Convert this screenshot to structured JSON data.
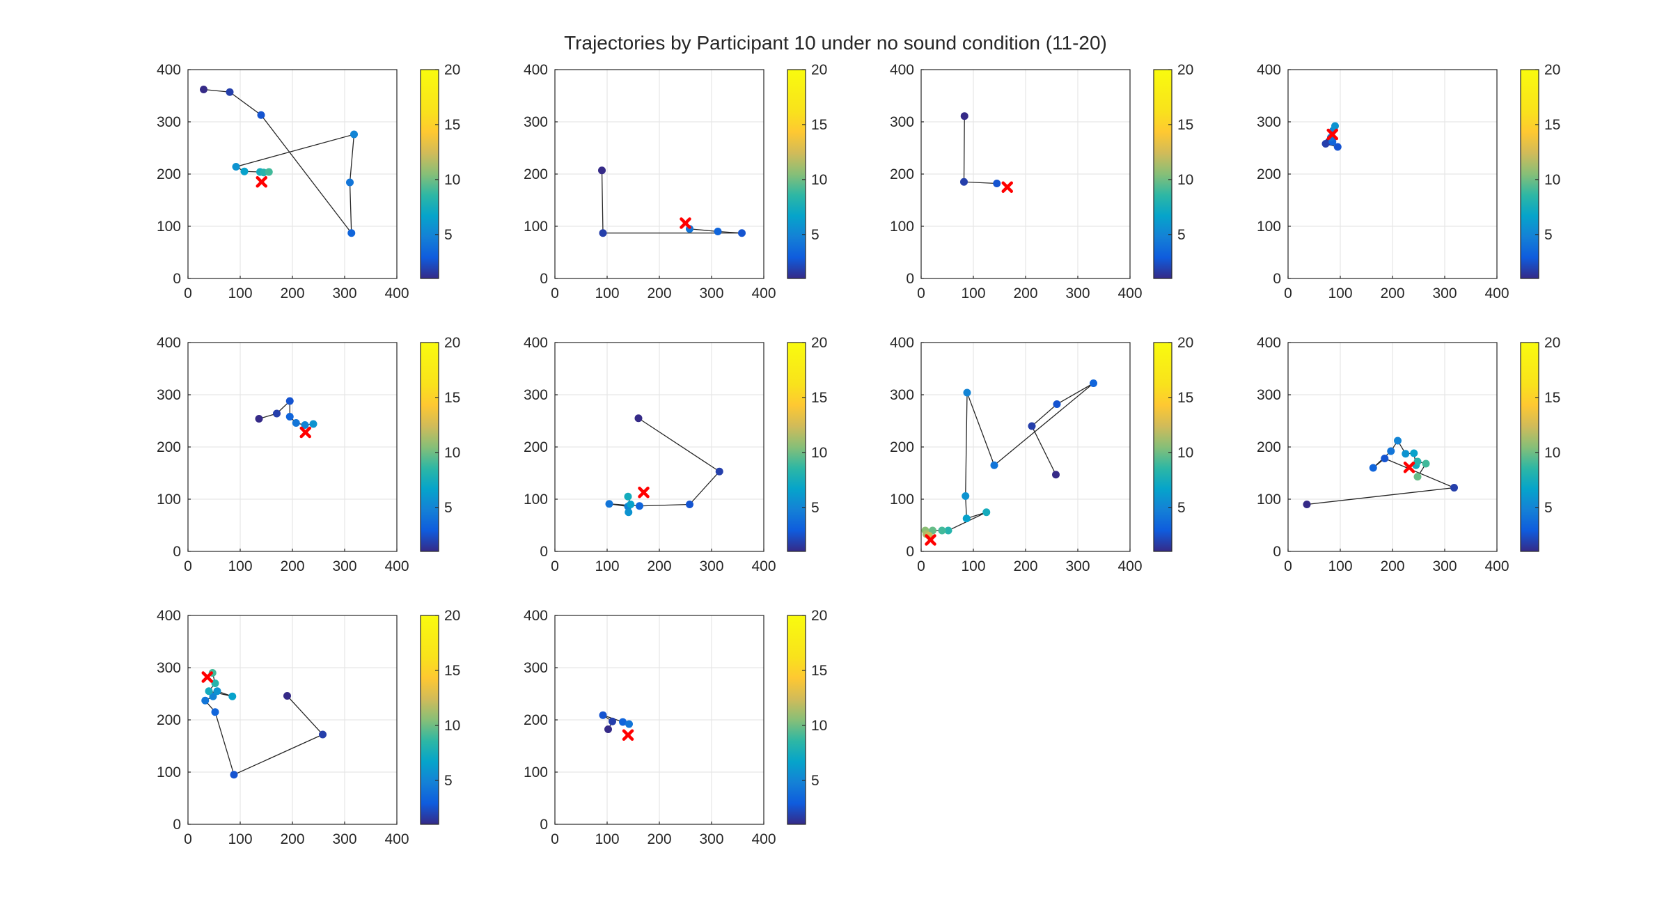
{
  "figure": {
    "title": "Trajectories by Participant 10 under no sound condition (11-20)"
  },
  "chart_data": [
    {
      "type": "scatter",
      "xlim": [
        0,
        400
      ],
      "ylim": [
        0,
        400
      ],
      "xticks": [
        0,
        100,
        200,
        300,
        400
      ],
      "yticks": [
        0,
        100,
        200,
        300,
        400
      ],
      "grid": true,
      "colorbar": {
        "limits": [
          1,
          20
        ],
        "ticks": [
          5,
          10,
          15,
          20
        ],
        "colormap": "parula"
      },
      "trajectory": [
        [
          30,
          362
        ],
        [
          80,
          357
        ],
        [
          140,
          313
        ],
        [
          313,
          87
        ],
        [
          310,
          184
        ],
        [
          318,
          276
        ],
        [
          92,
          214
        ],
        [
          108,
          205
        ],
        [
          138,
          204
        ],
        [
          145,
          203
        ],
        [
          155,
          204
        ]
      ],
      "target": [
        141,
        185
      ]
    },
    {
      "type": "scatter",
      "xlim": [
        0,
        400
      ],
      "ylim": [
        0,
        400
      ],
      "xticks": [
        0,
        100,
        200,
        300,
        400
      ],
      "yticks": [
        0,
        100,
        200,
        300,
        400
      ],
      "grid": true,
      "colorbar": {
        "limits": [
          1,
          20
        ],
        "ticks": [
          5,
          10,
          15,
          20
        ],
        "colormap": "parula"
      },
      "trajectory": [
        [
          90,
          207
        ],
        [
          92,
          87
        ],
        [
          358,
          87
        ],
        [
          312,
          90
        ],
        [
          258,
          95
        ]
      ],
      "target": [
        250,
        106
      ]
    },
    {
      "type": "scatter",
      "xlim": [
        0,
        400
      ],
      "ylim": [
        0,
        400
      ],
      "xticks": [
        0,
        100,
        200,
        300,
        400
      ],
      "yticks": [
        0,
        100,
        200,
        300,
        400
      ],
      "grid": true,
      "colorbar": {
        "limits": [
          1,
          20
        ],
        "ticks": [
          5,
          10,
          15,
          20
        ],
        "colormap": "parula"
      },
      "trajectory": [
        [
          83,
          311
        ],
        [
          82,
          185
        ],
        [
          145,
          182
        ]
      ],
      "target": [
        165,
        175
      ]
    },
    {
      "type": "scatter",
      "xlim": [
        0,
        400
      ],
      "ylim": [
        0,
        400
      ],
      "xticks": [
        0,
        100,
        200,
        300,
        400
      ],
      "yticks": [
        0,
        100,
        200,
        300,
        400
      ],
      "grid": true,
      "colorbar": {
        "limits": [
          1,
          20
        ],
        "ticks": [
          5,
          10,
          15,
          20
        ],
        "colormap": "parula"
      },
      "trajectory": [
        [
          78,
          262
        ],
        [
          72,
          258
        ],
        [
          95,
          252
        ],
        [
          85,
          262
        ],
        [
          82,
          270
        ],
        [
          86,
          283
        ],
        [
          90,
          292
        ]
      ],
      "target": [
        85,
        276
      ]
    },
    {
      "type": "scatter",
      "xlim": [
        0,
        400
      ],
      "ylim": [
        0,
        400
      ],
      "xticks": [
        0,
        100,
        200,
        300,
        400
      ],
      "yticks": [
        0,
        100,
        200,
        300,
        400
      ],
      "grid": true,
      "colorbar": {
        "limits": [
          1,
          20
        ],
        "ticks": [
          5,
          10,
          15,
          20
        ],
        "colormap": "parula"
      },
      "trajectory": [
        [
          136,
          254
        ],
        [
          170,
          264
        ],
        [
          195,
          288
        ],
        [
          195,
          258
        ],
        [
          207,
          246
        ],
        [
          224,
          242
        ],
        [
          240,
          244
        ]
      ],
      "target": [
        225,
        228
      ]
    },
    {
      "type": "scatter",
      "xlim": [
        0,
        400
      ],
      "ylim": [
        0,
        400
      ],
      "xticks": [
        0,
        100,
        200,
        300,
        400
      ],
      "yticks": [
        0,
        100,
        200,
        300,
        400
      ],
      "grid": true,
      "colorbar": {
        "limits": [
          1,
          20
        ],
        "ticks": [
          5,
          10,
          15,
          20
        ],
        "colormap": "parula"
      },
      "trajectory": [
        [
          160,
          255
        ],
        [
          315,
          153
        ],
        [
          258,
          90
        ],
        [
          162,
          87
        ],
        [
          104,
          91
        ],
        [
          140,
          86
        ],
        [
          141,
          75
        ],
        [
          145,
          90
        ],
        [
          140,
          105
        ]
      ],
      "target": [
        170,
        113
      ]
    },
    {
      "type": "scatter",
      "xlim": [
        0,
        400
      ],
      "ylim": [
        0,
        400
      ],
      "xticks": [
        0,
        100,
        200,
        300,
        400
      ],
      "yticks": [
        0,
        100,
        200,
        300,
        400
      ],
      "grid": true,
      "colorbar": {
        "limits": [
          1,
          20
        ],
        "ticks": [
          5,
          10,
          15,
          20
        ],
        "colormap": "parula"
      },
      "trajectory": [
        [
          258,
          147
        ],
        [
          212,
          240
        ],
        [
          260,
          282
        ],
        [
          330,
          322
        ],
        [
          140,
          165
        ],
        [
          88,
          304
        ],
        [
          85,
          106
        ],
        [
          87,
          63
        ],
        [
          125,
          75
        ],
        [
          52,
          40
        ],
        [
          40,
          40
        ],
        [
          22,
          40
        ],
        [
          8,
          40
        ],
        [
          10,
          33
        ],
        [
          15,
          30
        ]
      ],
      "target": [
        18,
        22
      ]
    },
    {
      "type": "scatter",
      "xlim": [
        0,
        400
      ],
      "ylim": [
        0,
        400
      ],
      "xticks": [
        0,
        100,
        200,
        300,
        400
      ],
      "yticks": [
        0,
        100,
        200,
        300,
        400
      ],
      "grid": true,
      "colorbar": {
        "limits": [
          1,
          20
        ],
        "ticks": [
          5,
          10,
          15,
          20
        ],
        "colormap": "parula"
      },
      "trajectory": [
        [
          36,
          90
        ],
        [
          318,
          122
        ],
        [
          185,
          178
        ],
        [
          163,
          160
        ],
        [
          197,
          192
        ],
        [
          210,
          212
        ],
        [
          225,
          187
        ],
        [
          241,
          188
        ],
        [
          245,
          165
        ],
        [
          248,
          172
        ],
        [
          264,
          168
        ],
        [
          248,
          143
        ]
      ],
      "target": [
        232,
        161
      ]
    },
    {
      "type": "scatter",
      "xlim": [
        0,
        400
      ],
      "ylim": [
        0,
        400
      ],
      "xticks": [
        0,
        100,
        200,
        300,
        400
      ],
      "yticks": [
        0,
        100,
        200,
        300,
        400
      ],
      "grid": true,
      "colorbar": {
        "limits": [
          1,
          20
        ],
        "ticks": [
          5,
          10,
          15,
          20
        ],
        "colormap": "parula"
      },
      "trajectory": [
        [
          190,
          246
        ],
        [
          258,
          172
        ],
        [
          88,
          95
        ],
        [
          52,
          215
        ],
        [
          33,
          237
        ],
        [
          48,
          245
        ],
        [
          56,
          255
        ],
        [
          85,
          245
        ],
        [
          40,
          255
        ],
        [
          52,
          270
        ],
        [
          47,
          290
        ]
      ],
      "target": [
        37,
        282
      ]
    },
    {
      "type": "scatter",
      "xlim": [
        0,
        400
      ],
      "ylim": [
        0,
        400
      ],
      "xticks": [
        0,
        100,
        200,
        300,
        400
      ],
      "yticks": [
        0,
        100,
        200,
        300,
        400
      ],
      "grid": true,
      "colorbar": {
        "limits": [
          1,
          20
        ],
        "ticks": [
          5,
          10,
          15,
          20
        ],
        "colormap": "parula"
      },
      "trajectory": [
        [
          102,
          182
        ],
        [
          110,
          197
        ],
        [
          92,
          209
        ],
        [
          130,
          196
        ],
        [
          142,
          192
        ]
      ],
      "target": [
        140,
        171
      ]
    }
  ]
}
